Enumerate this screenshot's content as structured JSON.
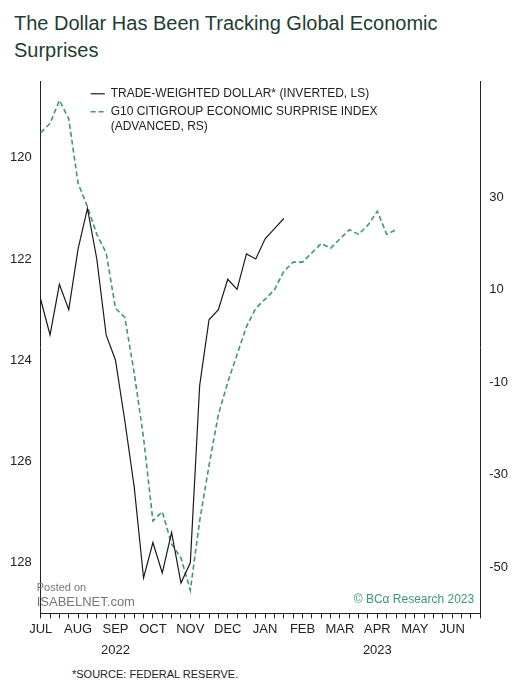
{
  "chart_data": {
    "type": "line",
    "title": "The Dollar Has Been Tracking Global Economic Surprises",
    "footnote": "*SOURCE: FEDERAL RESERVE.",
    "credit": "© BCα Research 2023",
    "watermark": [
      "Posted on",
      "ISABELNET.com"
    ],
    "categories": [
      "JUL",
      null,
      null,
      null,
      "AUG",
      null,
      null,
      null,
      "SEP",
      null,
      null,
      null,
      "OCT",
      null,
      null,
      null,
      "NOV",
      null,
      null,
      null,
      "DEC",
      null,
      null,
      null,
      "JAN",
      null,
      null,
      null,
      "FEB",
      null,
      null,
      null,
      "MAR",
      null,
      null,
      null,
      "APR",
      null,
      null,
      null,
      "MAY",
      null,
      null,
      null,
      "JUN",
      null,
      null,
      null
    ],
    "year_labels": [
      {
        "text": "2022",
        "category": "SEP"
      },
      {
        "text": "2023",
        "category": "APR"
      }
    ],
    "series": [
      {
        "name": "TRADE-WEIGHTED DOLLAR* (INVERTED, LS)",
        "color": "#1a1a1a",
        "line_style": "solid",
        "axis": "y",
        "values": [
          122.8,
          123.5,
          122.5,
          123.0,
          121.8,
          121.0,
          122.0,
          123.5,
          124.0,
          125.2,
          126.5,
          128.3,
          127.6,
          128.2,
          127.4,
          128.4,
          128.0,
          124.5,
          123.2,
          123.0,
          122.4,
          122.6,
          121.9,
          122.0,
          121.6,
          121.4,
          121.2,
          null,
          null,
          null,
          null,
          null,
          null,
          null,
          null,
          null,
          null,
          null,
          null,
          null,
          null,
          null,
          null,
          null,
          null,
          null,
          null,
          null
        ]
      },
      {
        "name": "G10 CITIGROUP ECONOMIC SURPRISE INDEX (ADVANCED, RS)",
        "color": "#3c9a6b",
        "line_style": "dashed",
        "axis": "y2",
        "values": [
          44,
          46,
          51,
          47,
          33,
          28,
          22,
          18,
          6,
          4,
          -8,
          -22,
          -40,
          -38,
          -45,
          -48,
          -55,
          -40,
          -28,
          -17,
          -10,
          -4,
          2,
          6,
          8,
          10,
          14,
          16,
          16,
          18,
          20,
          19,
          21,
          23,
          22,
          24,
          27,
          22,
          23,
          null,
          null,
          null,
          null,
          null,
          null,
          null,
          null,
          null
        ]
      }
    ],
    "ylim": [
      129,
      118.5
    ],
    "yticks": [
      120,
      122,
      124,
      126,
      128
    ],
    "y2lim": [
      -60,
      55
    ],
    "y2ticks": [
      -50,
      -30,
      -10,
      10,
      30
    ],
    "grid": false,
    "legend": "upper left"
  }
}
